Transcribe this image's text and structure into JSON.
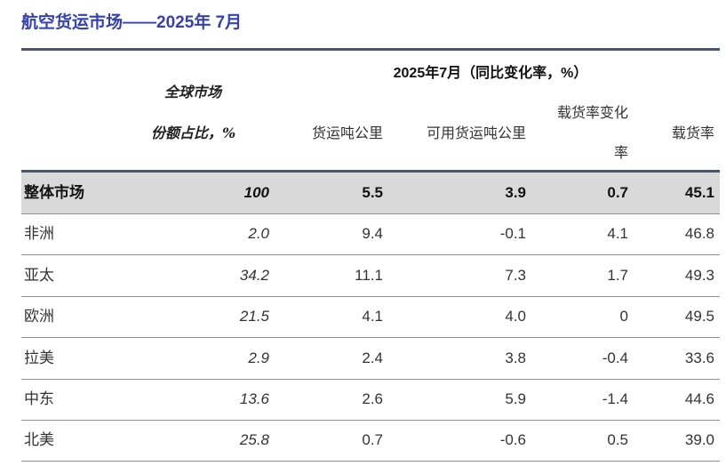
{
  "title": "航空货运市场——2025年 7月",
  "header": {
    "period": "2025年7月（同比变化率，%）",
    "share_line1": "全球市场",
    "share_line2": "份额占比，%",
    "col_ctk": "货运吨公里",
    "col_actk": "可用货运吨公里",
    "col_clf_change_line1": "载货率变化",
    "col_clf_change_line2": "率",
    "col_clf": "载货率"
  },
  "rows": [
    {
      "label": "整体市场",
      "share": "100",
      "ctk": "5.5",
      "actk": "3.9",
      "clf_change": "0.7",
      "clf": "45.1"
    },
    {
      "label": "非洲",
      "share": "2.0",
      "ctk": "9.4",
      "actk": "-0.1",
      "clf_change": "4.1",
      "clf": "46.8"
    },
    {
      "label": "亚太",
      "share": "34.2",
      "ctk": "11.1",
      "actk": "7.3",
      "clf_change": "1.7",
      "clf": "49.3"
    },
    {
      "label": "欧洲",
      "share": "21.5",
      "ctk": "4.1",
      "actk": "4.0",
      "clf_change": "0",
      "clf": "49.5"
    },
    {
      "label": "拉美",
      "share": "2.9",
      "ctk": "2.4",
      "actk": "3.8",
      "clf_change": "-0.4",
      "clf": "33.6"
    },
    {
      "label": "中东",
      "share": "13.6",
      "ctk": "2.6",
      "actk": "5.9",
      "clf_change": "-1.4",
      "clf": "44.6"
    },
    {
      "label": "北美",
      "share": "25.8",
      "ctk": "0.7",
      "actk": "-0.6",
      "clf_change": "0.5",
      "clf": "39.0"
    }
  ],
  "colors": {
    "title": "#3341b5",
    "rule": "#4a5670",
    "total_row_bg": "#d9d9d9"
  }
}
